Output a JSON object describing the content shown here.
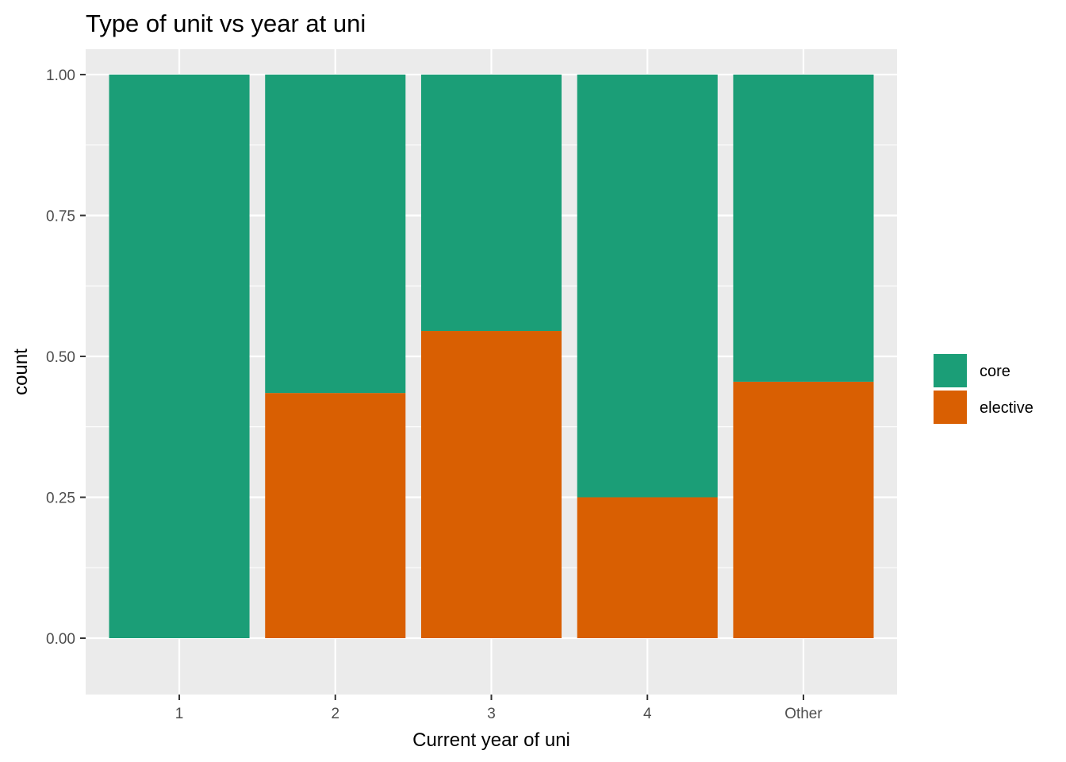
{
  "chart_data": {
    "type": "bar",
    "stacked": true,
    "title": "Type of unit vs year at uni",
    "xlabel": "Current year of uni",
    "ylabel": "count",
    "categories": [
      "1",
      "2",
      "3",
      "4",
      "Other"
    ],
    "series": [
      {
        "name": "core",
        "color": "#1B9E77",
        "values": [
          1.0,
          0.565,
          0.455,
          0.75,
          0.545
        ]
      },
      {
        "name": "elective",
        "color": "#D95F02",
        "values": [
          0.0,
          0.435,
          0.545,
          0.25,
          0.455
        ]
      }
    ],
    "stack_order": [
      "elective",
      "core"
    ],
    "ylim": [
      -0.1,
      1.045
    ],
    "yticks": [
      0.0,
      0.25,
      0.5,
      0.75,
      1.0
    ],
    "ytick_labels": [
      "0.00",
      "0.25",
      "0.50",
      "0.75",
      "1.00"
    ],
    "grid": true,
    "legend": "right",
    "panel_color": "#EBEBEB",
    "grid_color": "#FFFFFF"
  }
}
